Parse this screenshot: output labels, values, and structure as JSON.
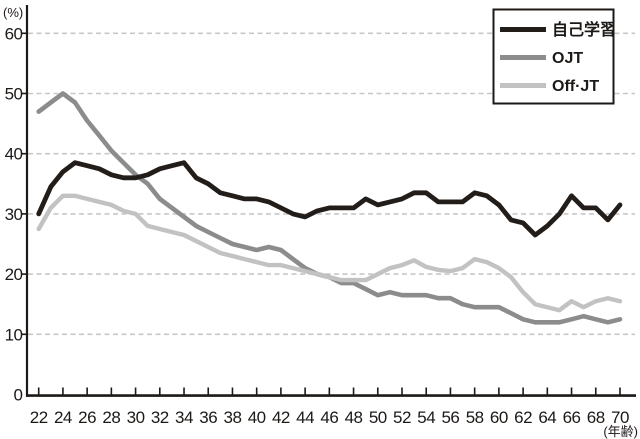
{
  "chart_data": {
    "type": "line",
    "title": "",
    "xlabel": "(年齢)",
    "ylabel": "(%)",
    "x": [
      22,
      23,
      24,
      25,
      26,
      27,
      28,
      29,
      30,
      31,
      32,
      33,
      34,
      35,
      36,
      37,
      38,
      39,
      40,
      41,
      42,
      43,
      44,
      45,
      46,
      47,
      48,
      49,
      50,
      51,
      52,
      53,
      54,
      55,
      56,
      57,
      58,
      59,
      60,
      61,
      62,
      63,
      64,
      65,
      66,
      67,
      68,
      69,
      70
    ],
    "x_ticks": [
      22,
      24,
      26,
      28,
      30,
      32,
      34,
      36,
      38,
      40,
      42,
      44,
      46,
      48,
      50,
      52,
      54,
      56,
      58,
      60,
      62,
      64,
      66,
      68,
      70
    ],
    "y_ticks": [
      0,
      10,
      20,
      30,
      40,
      50,
      60
    ],
    "xlim": [
      21,
      71
    ],
    "ylim": [
      0,
      63
    ],
    "grid": "horizontal-dashed",
    "legend_position": "top-right",
    "series": [
      {
        "name": "自己学習",
        "slug": "self-study",
        "color": "#231d1a",
        "values": [
          30,
          34.5,
          37,
          38.5,
          38,
          37.5,
          36.5,
          36,
          36,
          36.5,
          37.5,
          38,
          38.5,
          36,
          35,
          33.5,
          33,
          32.5,
          32.5,
          32,
          31,
          30,
          29.5,
          30.5,
          31,
          31,
          31,
          32.5,
          31.5,
          32,
          32.5,
          33.5,
          33.5,
          32,
          32,
          32,
          33.5,
          33,
          31.5,
          29,
          28.5,
          26.5,
          28,
          30,
          33,
          31,
          31,
          29,
          31.5
        ]
      },
      {
        "name": "OJT",
        "slug": "ojt",
        "color": "#8c8c8c",
        "values": [
          47,
          48.5,
          50,
          48.5,
          45.5,
          43,
          40.5,
          38.5,
          36.5,
          35,
          32.5,
          31,
          29.5,
          28,
          27,
          26,
          25,
          24.5,
          24,
          24.5,
          24,
          22.5,
          21,
          20,
          19.5,
          18.5,
          18.5,
          17.5,
          16.5,
          17,
          16.5,
          16.5,
          16.5,
          16,
          16,
          15,
          14.5,
          14.5,
          14.5,
          13.5,
          12.5,
          12,
          12,
          12,
          12.5,
          13,
          12.5,
          12,
          12.5
        ]
      },
      {
        "name": "Off·JT",
        "slug": "off-jt",
        "color": "#c2c2c2",
        "values": [
          27.5,
          31,
          33,
          33,
          32.5,
          32,
          31.5,
          30.5,
          30,
          28,
          27.5,
          27,
          26.5,
          25.5,
          24.5,
          23.5,
          23,
          22.5,
          22,
          21.5,
          21.5,
          21,
          20.5,
          20,
          19.5,
          19,
          19,
          19,
          20,
          21,
          21.5,
          22.3,
          21.2,
          20.7,
          20.5,
          21,
          22.5,
          22,
          21,
          19.5,
          17,
          15,
          14.5,
          14,
          15.5,
          14.5,
          15.5,
          16,
          15.5
        ]
      }
    ]
  }
}
